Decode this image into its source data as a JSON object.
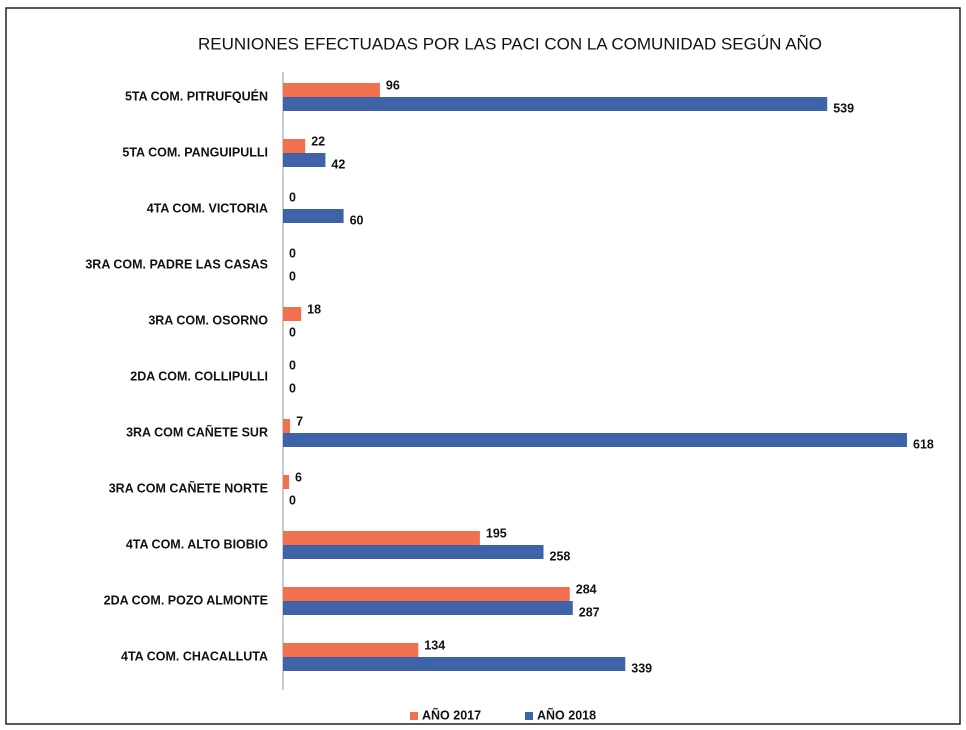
{
  "chart_data": {
    "type": "bar",
    "orientation": "horizontal",
    "title": "REUNIONES EFECTUADAS POR LAS PACI CON LA COMUNIDAD SEGÚN AÑO",
    "categories": [
      "5TA COM. PITRUFQUÉN",
      "5TA COM. PANGUIPULLI",
      "4TA COM. VICTORIA",
      "3RA COM. PADRE LAS CASAS",
      "3RA COM. OSORNO",
      "2DA COM. COLLIPULLI",
      "3RA COM CAÑETE SUR",
      "3RA COM CAÑETE NORTE",
      "4TA COM. ALTO BIOBIO",
      "2DA COM. POZO ALMONTE",
      "4TA COM. CHACALLUTA"
    ],
    "series": [
      {
        "name": "AÑO 2017",
        "color": "#f0704f",
        "values": [
          96,
          22,
          0,
          0,
          18,
          0,
          7,
          6,
          195,
          284,
          134
        ]
      },
      {
        "name": "AÑO 2018",
        "color": "#3f63a8",
        "values": [
          539,
          42,
          60,
          0,
          0,
          0,
          618,
          0,
          258,
          287,
          339
        ]
      }
    ],
    "legend": "bottom"
  }
}
